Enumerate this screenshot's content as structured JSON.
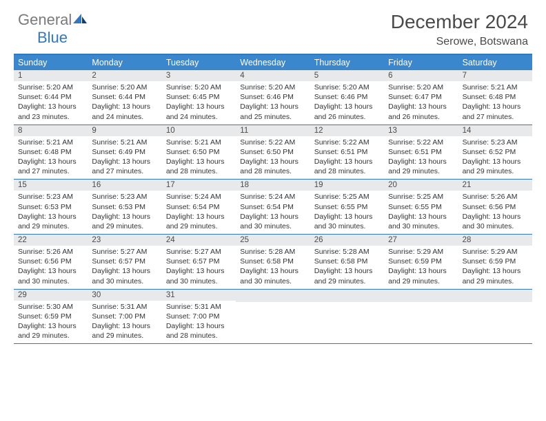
{
  "colors": {
    "brand_blue": "#2f78c4",
    "header_blue": "#3b87cd",
    "date_bar_bg": "#e8e9ea",
    "text_grey": "#4a4a4a",
    "body_text": "#333333",
    "white": "#ffffff"
  },
  "typography": {
    "title_fontsize": 28,
    "location_fontsize": 16,
    "dayheader_fontsize": 12.5,
    "date_fontsize": 11.5,
    "cellbody_fontsize": 10.5
  },
  "logo": {
    "word1": "General",
    "word2": "Blue"
  },
  "title": "December 2024",
  "location": "Serowe, Botswana",
  "day_names": [
    "Sunday",
    "Monday",
    "Tuesday",
    "Wednesday",
    "Thursday",
    "Friday",
    "Saturday"
  ],
  "weeks": [
    [
      {
        "date": "1",
        "sunrise": "Sunrise: 5:20 AM",
        "sunset": "Sunset: 6:44 PM",
        "day1": "Daylight: 13 hours",
        "day2": "and 23 minutes."
      },
      {
        "date": "2",
        "sunrise": "Sunrise: 5:20 AM",
        "sunset": "Sunset: 6:44 PM",
        "day1": "Daylight: 13 hours",
        "day2": "and 24 minutes."
      },
      {
        "date": "3",
        "sunrise": "Sunrise: 5:20 AM",
        "sunset": "Sunset: 6:45 PM",
        "day1": "Daylight: 13 hours",
        "day2": "and 24 minutes."
      },
      {
        "date": "4",
        "sunrise": "Sunrise: 5:20 AM",
        "sunset": "Sunset: 6:46 PM",
        "day1": "Daylight: 13 hours",
        "day2": "and 25 minutes."
      },
      {
        "date": "5",
        "sunrise": "Sunrise: 5:20 AM",
        "sunset": "Sunset: 6:46 PM",
        "day1": "Daylight: 13 hours",
        "day2": "and 26 minutes."
      },
      {
        "date": "6",
        "sunrise": "Sunrise: 5:20 AM",
        "sunset": "Sunset: 6:47 PM",
        "day1": "Daylight: 13 hours",
        "day2": "and 26 minutes."
      },
      {
        "date": "7",
        "sunrise": "Sunrise: 5:21 AM",
        "sunset": "Sunset: 6:48 PM",
        "day1": "Daylight: 13 hours",
        "day2": "and 27 minutes."
      }
    ],
    [
      {
        "date": "8",
        "sunrise": "Sunrise: 5:21 AM",
        "sunset": "Sunset: 6:48 PM",
        "day1": "Daylight: 13 hours",
        "day2": "and 27 minutes."
      },
      {
        "date": "9",
        "sunrise": "Sunrise: 5:21 AM",
        "sunset": "Sunset: 6:49 PM",
        "day1": "Daylight: 13 hours",
        "day2": "and 27 minutes."
      },
      {
        "date": "10",
        "sunrise": "Sunrise: 5:21 AM",
        "sunset": "Sunset: 6:50 PM",
        "day1": "Daylight: 13 hours",
        "day2": "and 28 minutes."
      },
      {
        "date": "11",
        "sunrise": "Sunrise: 5:22 AM",
        "sunset": "Sunset: 6:50 PM",
        "day1": "Daylight: 13 hours",
        "day2": "and 28 minutes."
      },
      {
        "date": "12",
        "sunrise": "Sunrise: 5:22 AM",
        "sunset": "Sunset: 6:51 PM",
        "day1": "Daylight: 13 hours",
        "day2": "and 28 minutes."
      },
      {
        "date": "13",
        "sunrise": "Sunrise: 5:22 AM",
        "sunset": "Sunset: 6:51 PM",
        "day1": "Daylight: 13 hours",
        "day2": "and 29 minutes."
      },
      {
        "date": "14",
        "sunrise": "Sunrise: 5:23 AM",
        "sunset": "Sunset: 6:52 PM",
        "day1": "Daylight: 13 hours",
        "day2": "and 29 minutes."
      }
    ],
    [
      {
        "date": "15",
        "sunrise": "Sunrise: 5:23 AM",
        "sunset": "Sunset: 6:53 PM",
        "day1": "Daylight: 13 hours",
        "day2": "and 29 minutes."
      },
      {
        "date": "16",
        "sunrise": "Sunrise: 5:23 AM",
        "sunset": "Sunset: 6:53 PM",
        "day1": "Daylight: 13 hours",
        "day2": "and 29 minutes."
      },
      {
        "date": "17",
        "sunrise": "Sunrise: 5:24 AM",
        "sunset": "Sunset: 6:54 PM",
        "day1": "Daylight: 13 hours",
        "day2": "and 29 minutes."
      },
      {
        "date": "18",
        "sunrise": "Sunrise: 5:24 AM",
        "sunset": "Sunset: 6:54 PM",
        "day1": "Daylight: 13 hours",
        "day2": "and 30 minutes."
      },
      {
        "date": "19",
        "sunrise": "Sunrise: 5:25 AM",
        "sunset": "Sunset: 6:55 PM",
        "day1": "Daylight: 13 hours",
        "day2": "and 30 minutes."
      },
      {
        "date": "20",
        "sunrise": "Sunrise: 5:25 AM",
        "sunset": "Sunset: 6:55 PM",
        "day1": "Daylight: 13 hours",
        "day2": "and 30 minutes."
      },
      {
        "date": "21",
        "sunrise": "Sunrise: 5:26 AM",
        "sunset": "Sunset: 6:56 PM",
        "day1": "Daylight: 13 hours",
        "day2": "and 30 minutes."
      }
    ],
    [
      {
        "date": "22",
        "sunrise": "Sunrise: 5:26 AM",
        "sunset": "Sunset: 6:56 PM",
        "day1": "Daylight: 13 hours",
        "day2": "and 30 minutes."
      },
      {
        "date": "23",
        "sunrise": "Sunrise: 5:27 AM",
        "sunset": "Sunset: 6:57 PM",
        "day1": "Daylight: 13 hours",
        "day2": "and 30 minutes."
      },
      {
        "date": "24",
        "sunrise": "Sunrise: 5:27 AM",
        "sunset": "Sunset: 6:57 PM",
        "day1": "Daylight: 13 hours",
        "day2": "and 30 minutes."
      },
      {
        "date": "25",
        "sunrise": "Sunrise: 5:28 AM",
        "sunset": "Sunset: 6:58 PM",
        "day1": "Daylight: 13 hours",
        "day2": "and 30 minutes."
      },
      {
        "date": "26",
        "sunrise": "Sunrise: 5:28 AM",
        "sunset": "Sunset: 6:58 PM",
        "day1": "Daylight: 13 hours",
        "day2": "and 29 minutes."
      },
      {
        "date": "27",
        "sunrise": "Sunrise: 5:29 AM",
        "sunset": "Sunset: 6:59 PM",
        "day1": "Daylight: 13 hours",
        "day2": "and 29 minutes."
      },
      {
        "date": "28",
        "sunrise": "Sunrise: 5:29 AM",
        "sunset": "Sunset: 6:59 PM",
        "day1": "Daylight: 13 hours",
        "day2": "and 29 minutes."
      }
    ],
    [
      {
        "date": "29",
        "sunrise": "Sunrise: 5:30 AM",
        "sunset": "Sunset: 6:59 PM",
        "day1": "Daylight: 13 hours",
        "day2": "and 29 minutes."
      },
      {
        "date": "30",
        "sunrise": "Sunrise: 5:31 AM",
        "sunset": "Sunset: 7:00 PM",
        "day1": "Daylight: 13 hours",
        "day2": "and 29 minutes."
      },
      {
        "date": "31",
        "sunrise": "Sunrise: 5:31 AM",
        "sunset": "Sunset: 7:00 PM",
        "day1": "Daylight: 13 hours",
        "day2": "and 28 minutes."
      },
      null,
      null,
      null,
      null
    ]
  ]
}
